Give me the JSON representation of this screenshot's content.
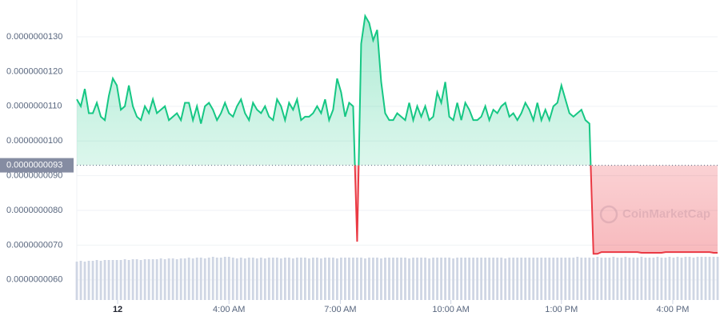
{
  "chart_data": {
    "type": "line",
    "watermark": "CoinMarketCap",
    "reference": {
      "value": 9.3e-09,
      "label": "0.0000000093"
    },
    "up_color": "#16c784",
    "down_color": "#ea3943",
    "xlim": [
      0,
      160
    ],
    "xticks": [
      {
        "value": 10.2,
        "label": "12"
      },
      {
        "value": 38,
        "label": "4:00 AM"
      },
      {
        "value": 65.8,
        "label": "7:00 AM"
      },
      {
        "value": 93.4,
        "label": "10:00 AM"
      },
      {
        "value": 121,
        "label": "1:00 PM"
      },
      {
        "value": 148.8,
        "label": "4:00 PM"
      }
    ],
    "ylim": [
      5.42e-09,
      1.406e-08
    ],
    "yticks": [
      {
        "value": 6e-09,
        "label": "0.0000000060"
      },
      {
        "value": 7e-09,
        "label": "0.0000000070"
      },
      {
        "value": 8e-09,
        "label": "0.0000000080"
      },
      {
        "value": 9e-09,
        "label": "0.0000000090"
      },
      {
        "value": 1e-08,
        "label": "0.0000000100"
      },
      {
        "value": 1.1e-08,
        "label": "0.0000000110"
      },
      {
        "value": 1.2e-08,
        "label": "0.0000000120"
      },
      {
        "value": 1.3e-08,
        "label": "0.0000000130"
      }
    ],
    "grid": true,
    "values": [
      1.12e-08,
      1.1e-08,
      1.15e-08,
      1.08e-08,
      1.08e-08,
      1.11e-08,
      1.07e-08,
      1.06e-08,
      1.13e-08,
      1.18e-08,
      1.16e-08,
      1.09e-08,
      1.1e-08,
      1.16e-08,
      1.1e-08,
      1.07e-08,
      1.06e-08,
      1.1e-08,
      1.08e-08,
      1.12e-08,
      1.08e-08,
      1.09e-08,
      1.1e-08,
      1.06e-08,
      1.07e-08,
      1.08e-08,
      1.06e-08,
      1.11e-08,
      1.11e-08,
      1.06e-08,
      1.1e-08,
      1.05e-08,
      1.1e-08,
      1.11e-08,
      1.09e-08,
      1.06e-08,
      1.08e-08,
      1.11e-08,
      1.08e-08,
      1.07e-08,
      1.1e-08,
      1.12e-08,
      1.08e-08,
      1.06e-08,
      1.11e-08,
      1.09e-08,
      1.08e-08,
      1.1e-08,
      1.07e-08,
      1.06e-08,
      1.12e-08,
      1.1e-08,
      1.06e-08,
      1.11e-08,
      1.09e-08,
      1.12e-08,
      1.06e-08,
      1.07e-08,
      1.07e-08,
      1.08e-08,
      1.1e-08,
      1.08e-08,
      1.12e-08,
      1.06e-08,
      1.09e-08,
      1.18e-08,
      1.14e-08,
      1.07e-08,
      1.11e-08,
      1.1e-08,
      7.1e-09,
      1.28e-08,
      1.36e-08,
      1.34e-08,
      1.29e-08,
      1.32e-08,
      1.17e-08,
      1.08e-08,
      1.06e-08,
      1.06e-08,
      1.08e-08,
      1.07e-08,
      1.06e-08,
      1.11e-08,
      1.06e-08,
      1.1e-08,
      1.07e-08,
      1.1e-08,
      1.06e-08,
      1.07e-08,
      1.14e-08,
      1.11e-08,
      1.17e-08,
      1.07e-08,
      1.06e-08,
      1.11e-08,
      1.06e-08,
      1.11e-08,
      1.09e-08,
      1.06e-08,
      1.06e-08,
      1.07e-08,
      1.1e-08,
      1.06e-08,
      1.09e-08,
      1.08e-08,
      1.1e-08,
      1.11e-08,
      1.07e-08,
      1.08e-08,
      1.06e-08,
      1.08e-08,
      1.11e-08,
      1.09e-08,
      1.06e-08,
      1.11e-08,
      1.06e-08,
      1.09e-08,
      1.06e-08,
      1.1e-08,
      1.11e-08,
      1.16e-08,
      1.12e-08,
      1.08e-08,
      1.07e-08,
      1.08e-08,
      1.09e-08,
      1.06e-08,
      1.05e-08,
      6.75e-09,
      6.75e-09,
      6.8e-09,
      6.8e-09,
      6.8e-09,
      6.8e-09,
      6.8e-09,
      6.8e-09,
      6.8e-09,
      6.8e-09,
      6.8e-09,
      6.8e-09,
      6.78e-09,
      6.78e-09,
      6.78e-09,
      6.78e-09,
      6.78e-09,
      6.78e-09,
      6.8e-09,
      6.8e-09,
      6.8e-09,
      6.8e-09,
      6.8e-09,
      6.8e-09,
      6.8e-09,
      6.8e-09,
      6.8e-09,
      6.8e-09,
      6.8e-09,
      6.8e-09,
      6.78e-09,
      6.78e-09
    ],
    "volume": {
      "color": "#cfd6e4",
      "ylim": [
        0,
        60
      ],
      "values": [
        48,
        49,
        48,
        49,
        49,
        50,
        49,
        50,
        50,
        50,
        50,
        50,
        51,
        50,
        51,
        51,
        50,
        51,
        51,
        51,
        51,
        52,
        51,
        52,
        52,
        51,
        52,
        52,
        53,
        52,
        53,
        53,
        52,
        53,
        54,
        53,
        53,
        54,
        54,
        53,
        52,
        53,
        52,
        53,
        53,
        52,
        53,
        52,
        53,
        53,
        53,
        52,
        53,
        53,
        52,
        53,
        53,
        53,
        52,
        53,
        53,
        52,
        53,
        53,
        53,
        52,
        53,
        53,
        53,
        53,
        53,
        53,
        52,
        53,
        53,
        53,
        52,
        53,
        53,
        53,
        53,
        53,
        53,
        52,
        53,
        53,
        53,
        53,
        52,
        53,
        53,
        53,
        53,
        53,
        52,
        53,
        53,
        53,
        53,
        53,
        53,
        53,
        53,
        53,
        53,
        53,
        53,
        52,
        53,
        53,
        53,
        53,
        53,
        53,
        53,
        53,
        53,
        53,
        53,
        53,
        53,
        53,
        53,
        53,
        53,
        54,
        53,
        53,
        53,
        53,
        54,
        53,
        53,
        53,
        54,
        53,
        53,
        54,
        53,
        53,
        53,
        54,
        53,
        53,
        53,
        54,
        53,
        53,
        54,
        53,
        54,
        53,
        54,
        54,
        53,
        54,
        54,
        54,
        54,
        54,
        54
      ]
    }
  }
}
